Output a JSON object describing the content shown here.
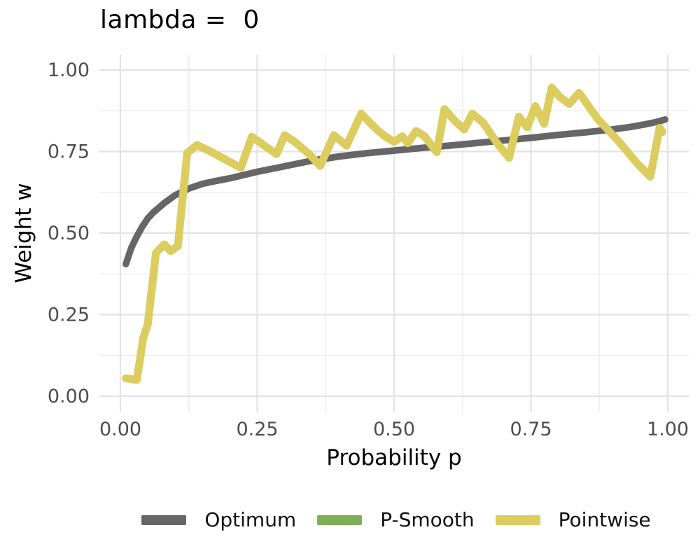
{
  "chart_data": {
    "type": "line",
    "title": "lambda =  0",
    "xlabel": "Probability p",
    "ylabel": "Weight w",
    "xlim": [
      0,
      1
    ],
    "ylim": [
      0,
      1
    ],
    "grid": "major+minor",
    "legend_position": "bottom",
    "x_ticks": {
      "values": [
        0,
        0.25,
        0.5,
        0.75,
        1
      ],
      "labels": [
        "0.00",
        "0.25",
        "0.50",
        "0.75",
        "1.00"
      ]
    },
    "y_ticks": {
      "values": [
        0,
        0.25,
        0.5,
        0.75,
        1
      ],
      "labels": [
        "0.00",
        "0.25",
        "0.50",
        "0.75",
        "1.00"
      ]
    },
    "x_minor": [
      0.125,
      0.375,
      0.625,
      0.875
    ],
    "y_minor": [
      0.125,
      0.375,
      0.625,
      0.875
    ],
    "series": [
      {
        "name": "Optimum",
        "color": "#666666",
        "stroke_width": 9.5,
        "points": [
          [
            0.01,
            0.405
          ],
          [
            0.02,
            0.455
          ],
          [
            0.03,
            0.49
          ],
          [
            0.04,
            0.52
          ],
          [
            0.05,
            0.545
          ],
          [
            0.06,
            0.563
          ],
          [
            0.08,
            0.592
          ],
          [
            0.1,
            0.616
          ],
          [
            0.125,
            0.637
          ],
          [
            0.15,
            0.651
          ],
          [
            0.175,
            0.66
          ],
          [
            0.2,
            0.668
          ],
          [
            0.25,
            0.688
          ],
          [
            0.3,
            0.705
          ],
          [
            0.35,
            0.722
          ],
          [
            0.4,
            0.735
          ],
          [
            0.45,
            0.745
          ],
          [
            0.5,
            0.753
          ],
          [
            0.55,
            0.761
          ],
          [
            0.6,
            0.768
          ],
          [
            0.65,
            0.776
          ],
          [
            0.7,
            0.784
          ],
          [
            0.75,
            0.792
          ],
          [
            0.8,
            0.801
          ],
          [
            0.85,
            0.809
          ],
          [
            0.9,
            0.818
          ],
          [
            0.93,
            0.825
          ],
          [
            0.96,
            0.834
          ],
          [
            0.98,
            0.841
          ],
          [
            0.995,
            0.848
          ]
        ]
      },
      {
        "name": "P-Smooth",
        "color": "#7cae5a",
        "stroke_width": 11,
        "hidden_behind": "Pointwise",
        "points": [
          [
            0.01,
            0.055
          ],
          [
            0.03,
            0.05
          ],
          [
            0.042,
            0.18
          ],
          [
            0.05,
            0.22
          ],
          [
            0.065,
            0.44
          ],
          [
            0.08,
            0.465
          ],
          [
            0.092,
            0.445
          ],
          [
            0.105,
            0.46
          ],
          [
            0.122,
            0.745
          ],
          [
            0.14,
            0.77
          ],
          [
            0.165,
            0.75
          ],
          [
            0.19,
            0.727
          ],
          [
            0.22,
            0.7
          ],
          [
            0.24,
            0.795
          ],
          [
            0.26,
            0.772
          ],
          [
            0.285,
            0.742
          ],
          [
            0.3,
            0.8
          ],
          [
            0.32,
            0.778
          ],
          [
            0.345,
            0.742
          ],
          [
            0.365,
            0.706
          ],
          [
            0.39,
            0.8
          ],
          [
            0.413,
            0.768
          ],
          [
            0.44,
            0.866
          ],
          [
            0.455,
            0.84
          ],
          [
            0.47,
            0.815
          ],
          [
            0.485,
            0.795
          ],
          [
            0.5,
            0.78
          ],
          [
            0.515,
            0.797
          ],
          [
            0.525,
            0.775
          ],
          [
            0.54,
            0.813
          ],
          [
            0.555,
            0.798
          ],
          [
            0.578,
            0.748
          ],
          [
            0.592,
            0.88
          ],
          [
            0.61,
            0.846
          ],
          [
            0.628,
            0.818
          ],
          [
            0.643,
            0.866
          ],
          [
            0.663,
            0.838
          ],
          [
            0.688,
            0.776
          ],
          [
            0.71,
            0.731
          ],
          [
            0.728,
            0.857
          ],
          [
            0.743,
            0.824
          ],
          [
            0.758,
            0.889
          ],
          [
            0.774,
            0.835
          ],
          [
            0.788,
            0.946
          ],
          [
            0.803,
            0.917
          ],
          [
            0.82,
            0.896
          ],
          [
            0.838,
            0.93
          ],
          [
            0.872,
            0.85
          ],
          [
            0.912,
            0.778
          ],
          [
            0.945,
            0.712
          ],
          [
            0.968,
            0.673
          ],
          [
            0.985,
            0.823
          ],
          [
            0.99,
            0.81
          ]
        ]
      },
      {
        "name": "Pointwise",
        "color": "#ddcd5f",
        "stroke_width": 11,
        "points": [
          [
            0.01,
            0.055
          ],
          [
            0.03,
            0.05
          ],
          [
            0.042,
            0.18
          ],
          [
            0.05,
            0.22
          ],
          [
            0.065,
            0.44
          ],
          [
            0.08,
            0.465
          ],
          [
            0.092,
            0.445
          ],
          [
            0.105,
            0.46
          ],
          [
            0.122,
            0.745
          ],
          [
            0.14,
            0.77
          ],
          [
            0.165,
            0.75
          ],
          [
            0.19,
            0.727
          ],
          [
            0.22,
            0.7
          ],
          [
            0.24,
            0.795
          ],
          [
            0.26,
            0.772
          ],
          [
            0.285,
            0.742
          ],
          [
            0.3,
            0.8
          ],
          [
            0.32,
            0.778
          ],
          [
            0.345,
            0.742
          ],
          [
            0.365,
            0.706
          ],
          [
            0.39,
            0.8
          ],
          [
            0.413,
            0.768
          ],
          [
            0.44,
            0.866
          ],
          [
            0.455,
            0.84
          ],
          [
            0.47,
            0.815
          ],
          [
            0.485,
            0.795
          ],
          [
            0.5,
            0.78
          ],
          [
            0.515,
            0.797
          ],
          [
            0.525,
            0.775
          ],
          [
            0.54,
            0.813
          ],
          [
            0.555,
            0.798
          ],
          [
            0.578,
            0.748
          ],
          [
            0.592,
            0.88
          ],
          [
            0.61,
            0.846
          ],
          [
            0.628,
            0.818
          ],
          [
            0.643,
            0.866
          ],
          [
            0.663,
            0.838
          ],
          [
            0.688,
            0.776
          ],
          [
            0.71,
            0.731
          ],
          [
            0.728,
            0.857
          ],
          [
            0.743,
            0.824
          ],
          [
            0.758,
            0.889
          ],
          [
            0.774,
            0.835
          ],
          [
            0.788,
            0.946
          ],
          [
            0.803,
            0.917
          ],
          [
            0.82,
            0.896
          ],
          [
            0.838,
            0.93
          ],
          [
            0.872,
            0.85
          ],
          [
            0.912,
            0.778
          ],
          [
            0.945,
            0.712
          ],
          [
            0.968,
            0.673
          ],
          [
            0.985,
            0.823
          ],
          [
            0.99,
            0.81
          ]
        ]
      }
    ],
    "colors": {
      "grid_major": "#e3e3e3",
      "grid_minor": "#eeeeee",
      "tick_label": "#4d4d4d",
      "axis_title": "#000000",
      "title": "#000000",
      "background": "#ffffff"
    }
  },
  "legend": {
    "items": [
      {
        "label": "Optimum",
        "color": "#666666"
      },
      {
        "label": "P-Smooth",
        "color": "#7cae5a"
      },
      {
        "label": "Pointwise",
        "color": "#ddcd5f"
      }
    ]
  }
}
